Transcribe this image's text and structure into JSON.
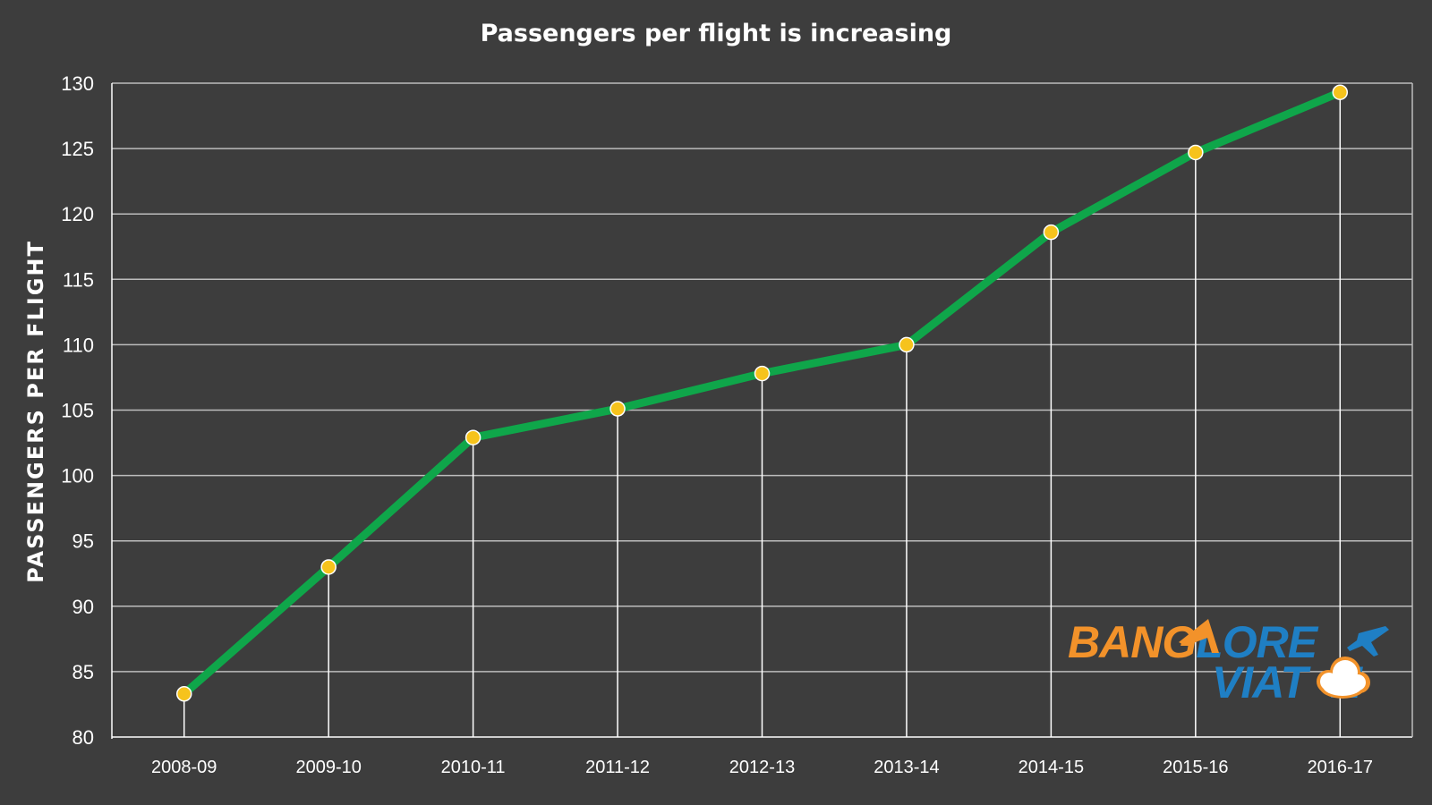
{
  "chart_data": {
    "type": "line",
    "title": "Passengers per flight is increasing",
    "xlabel": "",
    "ylabel": "PASSENGERS PER FLIGHT",
    "categories": [
      "2008-09",
      "2009-10",
      "2010-11",
      "2011-12",
      "2012-13",
      "2013-14",
      "2014-15",
      "2015-16",
      "2016-17"
    ],
    "series": [
      {
        "values": [
          83.3,
          93.0,
          102.9,
          105.1,
          107.8,
          110.0,
          118.6,
          124.7,
          129.3
        ]
      }
    ],
    "ylim": [
      80,
      130
    ],
    "yticks": [
      80,
      85,
      90,
      95,
      100,
      105,
      110,
      115,
      120,
      125,
      130
    ],
    "grid": true,
    "legend": "none",
    "colors": {
      "background": "#3d3d3d",
      "line": "#0fa64a",
      "marker": "#f6c31c",
      "grid": "#bdbdbd",
      "text": "#ffffff"
    }
  },
  "watermark": {
    "line1": "BANGALORE",
    "line2": "AVIATION",
    "colors": {
      "orange": "#f2922a",
      "blue": "#1f7fc4"
    }
  }
}
